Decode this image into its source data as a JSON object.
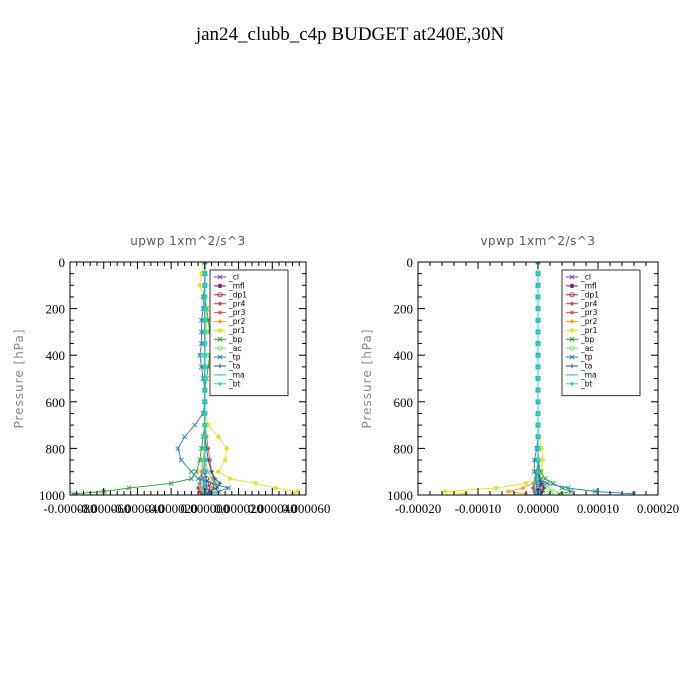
{
  "figure_title": "jan24_clubb_c4p  BUDGET at240E,30N",
  "chart_data": [
    {
      "type": "line",
      "title": "upwp   1xm^2/s^3",
      "ylabel": "Pressure [hPa]",
      "xlabel": "",
      "xlim": [
        -8e-05,
        6e-05
      ],
      "ylim": [
        1000,
        0
      ],
      "xticks": [
        -8e-05,
        -6e-05,
        -4e-05,
        -2e-05,
        0.0,
        2e-05,
        4e-05,
        6e-05
      ],
      "xtick_labels": [
        "-0.000080",
        "-0.000060",
        "-0.000040",
        "-0.000020",
        "0.000000",
        "0.000020",
        "0.000040",
        "0.000060"
      ],
      "yticks": [
        0,
        200,
        400,
        600,
        800,
        1000
      ],
      "ytick_labels": [
        "0",
        "200",
        "400",
        "600",
        "800",
        "1000"
      ],
      "legend_position": "top-right",
      "pressure": [
        0,
        50,
        100,
        150,
        200,
        250,
        300,
        350,
        400,
        450,
        500,
        550,
        600,
        650,
        700,
        750,
        800,
        850,
        900,
        930,
        950,
        970,
        985,
        995
      ],
      "series": [
        {
          "name": "_cl",
          "color": "#7a3fd0",
          "marker": "cross",
          "values": [
            0,
            0,
            0,
            0,
            0,
            0,
            0,
            0,
            0,
            0,
            0,
            0,
            0,
            0,
            0,
            0,
            0,
            0,
            0,
            0,
            0,
            0,
            0,
            0
          ]
        },
        {
          "name": "_mfl",
          "color": "#8b1a6b",
          "marker": "dot",
          "values": [
            0,
            0,
            0,
            0,
            0,
            0,
            0,
            0,
            0,
            0,
            0,
            0,
            0,
            0,
            0,
            0,
            0,
            0,
            0,
            0,
            0,
            0,
            0,
            0
          ]
        },
        {
          "name": "_dp1",
          "color": "#c21a3a",
          "marker": "circle",
          "values": [
            0,
            0,
            0,
            0,
            0,
            0,
            0,
            0,
            0,
            0,
            0,
            0,
            0,
            0,
            0,
            0,
            0,
            0,
            0,
            1e-06,
            2e-06,
            3e-06,
            2e-06,
            1e-06
          ]
        },
        {
          "name": "_pr4",
          "color": "#e0304a",
          "marker": "diamond",
          "values": [
            0,
            0,
            0,
            0,
            0,
            0,
            0,
            0,
            0,
            0,
            0,
            0,
            0,
            0,
            0,
            0,
            0,
            -1e-06,
            -2e-06,
            -2e-06,
            -3e-06,
            -4e-06,
            -3e-06,
            -2e-06
          ]
        },
        {
          "name": "_pr3",
          "color": "#e8503a",
          "marker": "star",
          "values": [
            0,
            0,
            0,
            0,
            0,
            0,
            0,
            0,
            0,
            0,
            0,
            0,
            0,
            0,
            0,
            1e-06,
            2e-06,
            3e-06,
            4e-06,
            5e-06,
            6e-06,
            5e-06,
            3e-06,
            1e-06
          ]
        },
        {
          "name": "_pr2",
          "color": "#f5a020",
          "marker": "star",
          "values": [
            0,
            0,
            0,
            0,
            0,
            0,
            0,
            0,
            0,
            0,
            0,
            0,
            0,
            0,
            0,
            0,
            0,
            -1e-06,
            -2e-06,
            -3e-06,
            -3e-06,
            -2e-06,
            0,
            0
          ]
        },
        {
          "name": "_pr1",
          "color": "#e8e02a",
          "marker": "dot",
          "values": [
            -1e-06,
            -2e-06,
            -3e-06,
            -1e-06,
            1e-06,
            1e-06,
            1e-06,
            0,
            0,
            0,
            0,
            0,
            0,
            0,
            2e-06,
            8e-06,
            1.3e-05,
            1.2e-05,
            8e-06,
            1.5e-05,
            3e-05,
            4.2e-05,
            5.5e-05,
            5.2e-05
          ]
        },
        {
          "name": "_bp",
          "color": "#20a030",
          "marker": "cross",
          "values": [
            0,
            0,
            0,
            0,
            1e-06,
            2e-06,
            3e-06,
            4e-06,
            3e-06,
            2e-06,
            1e-06,
            0,
            0,
            0,
            0,
            -1e-06,
            -2e-06,
            -3e-06,
            -5e-06,
            -8e-06,
            -2e-05,
            -4.5e-05,
            -6e-05,
            -7.8e-05
          ]
        },
        {
          "name": "_ac",
          "color": "#80e060",
          "marker": "circle",
          "values": [
            0,
            0,
            0,
            0,
            0,
            0,
            0,
            0,
            0,
            0,
            0,
            0,
            0,
            0,
            0,
            0,
            0,
            0,
            2e-06,
            4e-06,
            6e-06,
            7e-06,
            5e-06,
            2e-06
          ]
        },
        {
          "name": "_tp",
          "color": "#2080c0",
          "marker": "cross",
          "values": [
            0,
            0,
            0,
            -1e-06,
            -1e-06,
            -2e-06,
            -2e-06,
            -2e-06,
            -3e-06,
            -2e-06,
            -1e-06,
            0,
            0,
            -1e-06,
            -6e-06,
            -1.2e-05,
            -1.6e-05,
            -1.4e-05,
            -8e-06,
            -4e-06,
            4e-06,
            1.4e-05,
            8e-06,
            3e-06
          ]
        },
        {
          "name": "_ta",
          "color": "#1e50a0",
          "marker": "plus",
          "values": [
            0,
            0,
            0,
            0,
            0,
            0,
            0,
            0,
            0,
            0,
            0,
            0,
            0,
            0,
            0,
            0,
            1e-06,
            2e-06,
            4e-06,
            6e-06,
            9e-06,
            7e-06,
            3e-06,
            1e-06
          ]
        },
        {
          "name": "_ma",
          "color": "#30b0c0",
          "marker": "dash",
          "values": [
            0,
            0,
            0,
            0,
            0,
            0,
            0,
            0,
            0,
            0,
            0,
            0,
            0,
            0,
            0,
            0,
            0,
            0,
            -1e-06,
            -2e-06,
            -3e-06,
            -2e-06,
            -1e-06,
            0
          ]
        },
        {
          "name": "_bt",
          "color": "#00e0e0",
          "marker": "diamond",
          "values": [
            0,
            0,
            0,
            0,
            0,
            0,
            0,
            0,
            0,
            0,
            0,
            0,
            0,
            0,
            0,
            0,
            0,
            0,
            0,
            0,
            0,
            0,
            0,
            0
          ]
        }
      ]
    },
    {
      "type": "line",
      "title": "vpwp   1xm^2/s^3",
      "ylabel": "Pressure [hPa]",
      "xlabel": "",
      "xlim": [
        -0.0002,
        0.0002
      ],
      "ylim": [
        1000,
        0
      ],
      "xticks": [
        -0.0002,
        -0.0001,
        0.0,
        0.0001,
        0.0002
      ],
      "xtick_labels": [
        "-0.00020",
        "-0.00010",
        "0.00000",
        "0.00010",
        "0.00020"
      ],
      "yticks": [
        0,
        200,
        400,
        600,
        800,
        1000
      ],
      "ytick_labels": [
        "0",
        "200",
        "400",
        "600",
        "800",
        "1000"
      ],
      "legend_position": "top-right",
      "pressure": [
        0,
        50,
        100,
        150,
        200,
        250,
        300,
        350,
        400,
        450,
        500,
        550,
        600,
        650,
        700,
        750,
        800,
        850,
        900,
        930,
        950,
        970,
        985,
        995
      ],
      "series": [
        {
          "name": "_cl",
          "color": "#7a3fd0",
          "marker": "cross",
          "values": [
            0,
            0,
            0,
            0,
            0,
            0,
            0,
            0,
            0,
            0,
            0,
            0,
            0,
            0,
            0,
            0,
            0,
            0,
            0,
            0,
            0,
            0,
            0,
            0
          ]
        },
        {
          "name": "_mfl",
          "color": "#8b1a6b",
          "marker": "dot",
          "values": [
            0,
            0,
            0,
            0,
            0,
            0,
            0,
            0,
            0,
            0,
            0,
            0,
            0,
            0,
            0,
            0,
            0,
            0,
            0,
            0,
            0,
            0,
            0,
            0
          ]
        },
        {
          "name": "_dp1",
          "color": "#c21a3a",
          "marker": "circle",
          "values": [
            0,
            0,
            0,
            0,
            0,
            0,
            0,
            0,
            0,
            0,
            0,
            0,
            0,
            0,
            0,
            0,
            0,
            0,
            0,
            2e-06,
            4e-06,
            5e-06,
            4e-06,
            2e-06
          ]
        },
        {
          "name": "_pr4",
          "color": "#e0304a",
          "marker": "diamond",
          "values": [
            0,
            0,
            0,
            0,
            0,
            0,
            0,
            0,
            0,
            0,
            0,
            0,
            0,
            0,
            0,
            0,
            0,
            0,
            -2e-06,
            -4e-06,
            -6e-06,
            -8e-06,
            -6e-06,
            -4e-06
          ]
        },
        {
          "name": "_pr3",
          "color": "#e8503a",
          "marker": "star",
          "values": [
            0,
            0,
            0,
            0,
            0,
            0,
            0,
            0,
            0,
            0,
            0,
            0,
            0,
            0,
            0,
            0,
            0,
            1e-06,
            3e-06,
            5e-06,
            8e-06,
            1e-05,
            6e-06,
            3e-06
          ]
        },
        {
          "name": "_pr2",
          "color": "#f5a020",
          "marker": "star",
          "values": [
            0,
            0,
            0,
            0,
            0,
            0,
            0,
            0,
            0,
            0,
            0,
            0,
            0,
            0,
            0,
            0,
            0,
            0,
            0,
            -2e-06,
            -8e-06,
            -2.5e-05,
            -5e-05,
            -2e-05
          ]
        },
        {
          "name": "_pr1",
          "color": "#e8e02a",
          "marker": "dot",
          "values": [
            0,
            0,
            0,
            0,
            0,
            0,
            0,
            0,
            0,
            0,
            0,
            0,
            0,
            0,
            0,
            2e-06,
            6e-06,
            8e-06,
            6e-06,
            3e-06,
            -2e-05,
            -7e-05,
            -0.000155,
            -0.00012
          ]
        },
        {
          "name": "_bp",
          "color": "#20a030",
          "marker": "cross",
          "values": [
            0,
            0,
            0,
            0,
            0,
            0,
            0,
            0,
            0,
            0,
            0,
            0,
            0,
            0,
            0,
            0,
            0,
            0,
            4e-06,
            1.2e-05,
            2.5e-05,
            4e-05,
            5.5e-05,
            3.5e-05
          ]
        },
        {
          "name": "_ac",
          "color": "#80e060",
          "marker": "circle",
          "values": [
            0,
            0,
            0,
            0,
            0,
            0,
            0,
            0,
            0,
            0,
            0,
            0,
            0,
            0,
            0,
            0,
            0,
            0,
            2e-06,
            5e-06,
            1e-05,
            1.8e-05,
            2.5e-05,
            1.5e-05
          ]
        },
        {
          "name": "_tp",
          "color": "#2080c0",
          "marker": "cross",
          "values": [
            0,
            0,
            0,
            0,
            0,
            0,
            0,
            0,
            0,
            0,
            0,
            0,
            0,
            0,
            0,
            0,
            -2e-06,
            -6e-06,
            -6e-06,
            -2e-06,
            1.5e-05,
            5e-05,
            9.5e-05,
            0.00016
          ]
        },
        {
          "name": "_ta",
          "color": "#1e50a0",
          "marker": "plus",
          "values": [
            0,
            0,
            0,
            0,
            0,
            0,
            0,
            0,
            0,
            0,
            0,
            0,
            0,
            0,
            0,
            0,
            0,
            0,
            1e-06,
            3e-06,
            6e-06,
            1e-05,
            8e-06,
            4e-06
          ]
        },
        {
          "name": "_ma",
          "color": "#30b0c0",
          "marker": "dash",
          "values": [
            0,
            0,
            0,
            0,
            0,
            0,
            0,
            0,
            0,
            0,
            0,
            0,
            0,
            0,
            0,
            0,
            0,
            0,
            -1e-06,
            -3e-06,
            -5e-06,
            -6e-06,
            -4e-06,
            -2e-06
          ]
        },
        {
          "name": "_bt",
          "color": "#00e0e0",
          "marker": "diamond",
          "values": [
            0,
            0,
            0,
            0,
            0,
            0,
            0,
            0,
            0,
            0,
            0,
            0,
            0,
            0,
            0,
            0,
            0,
            0,
            0,
            0,
            0,
            0,
            0,
            0
          ]
        }
      ]
    }
  ]
}
